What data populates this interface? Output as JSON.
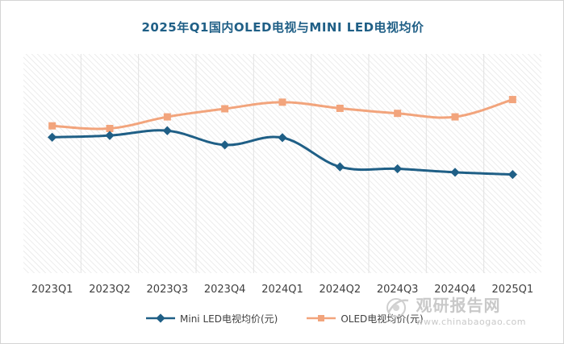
{
  "chart_data": {
    "type": "line",
    "title": "2025年Q1国内OLED电视与MINI LED电视均价",
    "categories": [
      "2023Q1",
      "2023Q2",
      "2023Q3",
      "2023Q4",
      "2024Q1",
      "2024Q2",
      "2024Q3",
      "2024Q4",
      "2025Q1"
    ],
    "series": [
      {
        "name": "Mini LED电视均价(元)",
        "color": "#1f5f86",
        "marker": "diamond",
        "values": [
          6200,
          6280,
          6500,
          5850,
          6180,
          4850,
          4760,
          4600,
          4500
        ]
      },
      {
        "name": "OLED电视均价(元)",
        "color": "#f2a47c",
        "marker": "square",
        "values": [
          6720,
          6600,
          7130,
          7500,
          7800,
          7520,
          7290,
          7130,
          7920
        ]
      }
    ],
    "ylim": [
      0,
      10000
    ],
    "grid": true,
    "legend_position": "bottom"
  },
  "watermark": {
    "cn": "观研报告网",
    "en": "www.chinabaogao.com"
  }
}
